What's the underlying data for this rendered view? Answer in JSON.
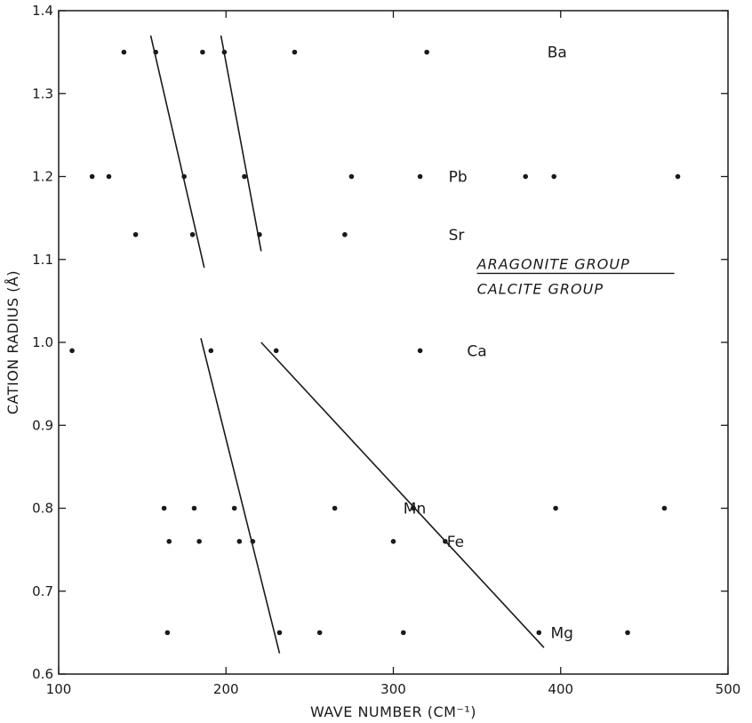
{
  "chart_data": {
    "type": "scatter",
    "title": "",
    "xlabel": "WAVE NUMBER (CM⁻¹)",
    "ylabel": "CATION RADIUS (Å)",
    "xlim": [
      100,
      500
    ],
    "ylim": [
      0.6,
      1.4
    ],
    "xticks": [
      100,
      200,
      300,
      400,
      500
    ],
    "xtick_labels": [
      "100",
      "200",
      "300",
      "400",
      "500"
    ],
    "yticks": [
      0.6,
      0.7,
      0.8,
      0.9,
      1.0,
      1.1,
      1.2,
      1.3,
      1.4
    ],
    "ytick_labels": [
      "0.6",
      "0.7",
      "0.8",
      "0.9",
      "1.0",
      "1.1",
      "1.2",
      "1.3",
      "1.4"
    ],
    "grid": false,
    "series": [
      {
        "label": "Ba",
        "y": 1.35,
        "x": [
          139,
          158,
          186,
          199,
          241,
          320
        ],
        "label_x": 392
      },
      {
        "label": "Pb",
        "y": 1.2,
        "x": [
          120,
          130,
          175,
          211,
          275,
          316,
          379,
          396,
          470
        ],
        "label_x": 333
      },
      {
        "label": "Sr",
        "y": 1.13,
        "x": [
          146,
          180,
          220,
          271
        ],
        "label_x": 333
      },
      {
        "label": "Ca",
        "y": 0.99,
        "x": [
          108,
          191,
          230,
          316
        ],
        "label_x": 344
      },
      {
        "label": "Mn",
        "y": 0.8,
        "x": [
          163,
          181,
          205,
          265,
          312,
          397,
          462
        ],
        "label_x": 306
      },
      {
        "label": "Fe",
        "y": 0.76,
        "x": [
          166,
          184,
          208,
          216,
          300,
          331
        ],
        "label_x": 332
      },
      {
        "label": "Mg",
        "y": 0.65,
        "x": [
          165,
          232,
          256,
          306,
          387,
          440
        ],
        "label_x": 394
      }
    ],
    "trend_lines": [
      {
        "from": [
          155,
          1.37
        ],
        "to": [
          187,
          1.09
        ]
      },
      {
        "from": [
          197,
          1.37
        ],
        "to": [
          221,
          1.11
        ]
      },
      {
        "from": [
          185,
          1.005
        ],
        "to": [
          232,
          0.625
        ]
      },
      {
        "from": [
          221,
          1.0
        ],
        "to": [
          390,
          0.632
        ]
      }
    ],
    "annotations": [
      {
        "text": "ARAGONITE GROUP",
        "x": 350,
        "y": 1.095,
        "underline": true
      },
      {
        "text": "CALCITE GROUP",
        "x": 350,
        "y": 1.065,
        "underline": false
      }
    ]
  }
}
